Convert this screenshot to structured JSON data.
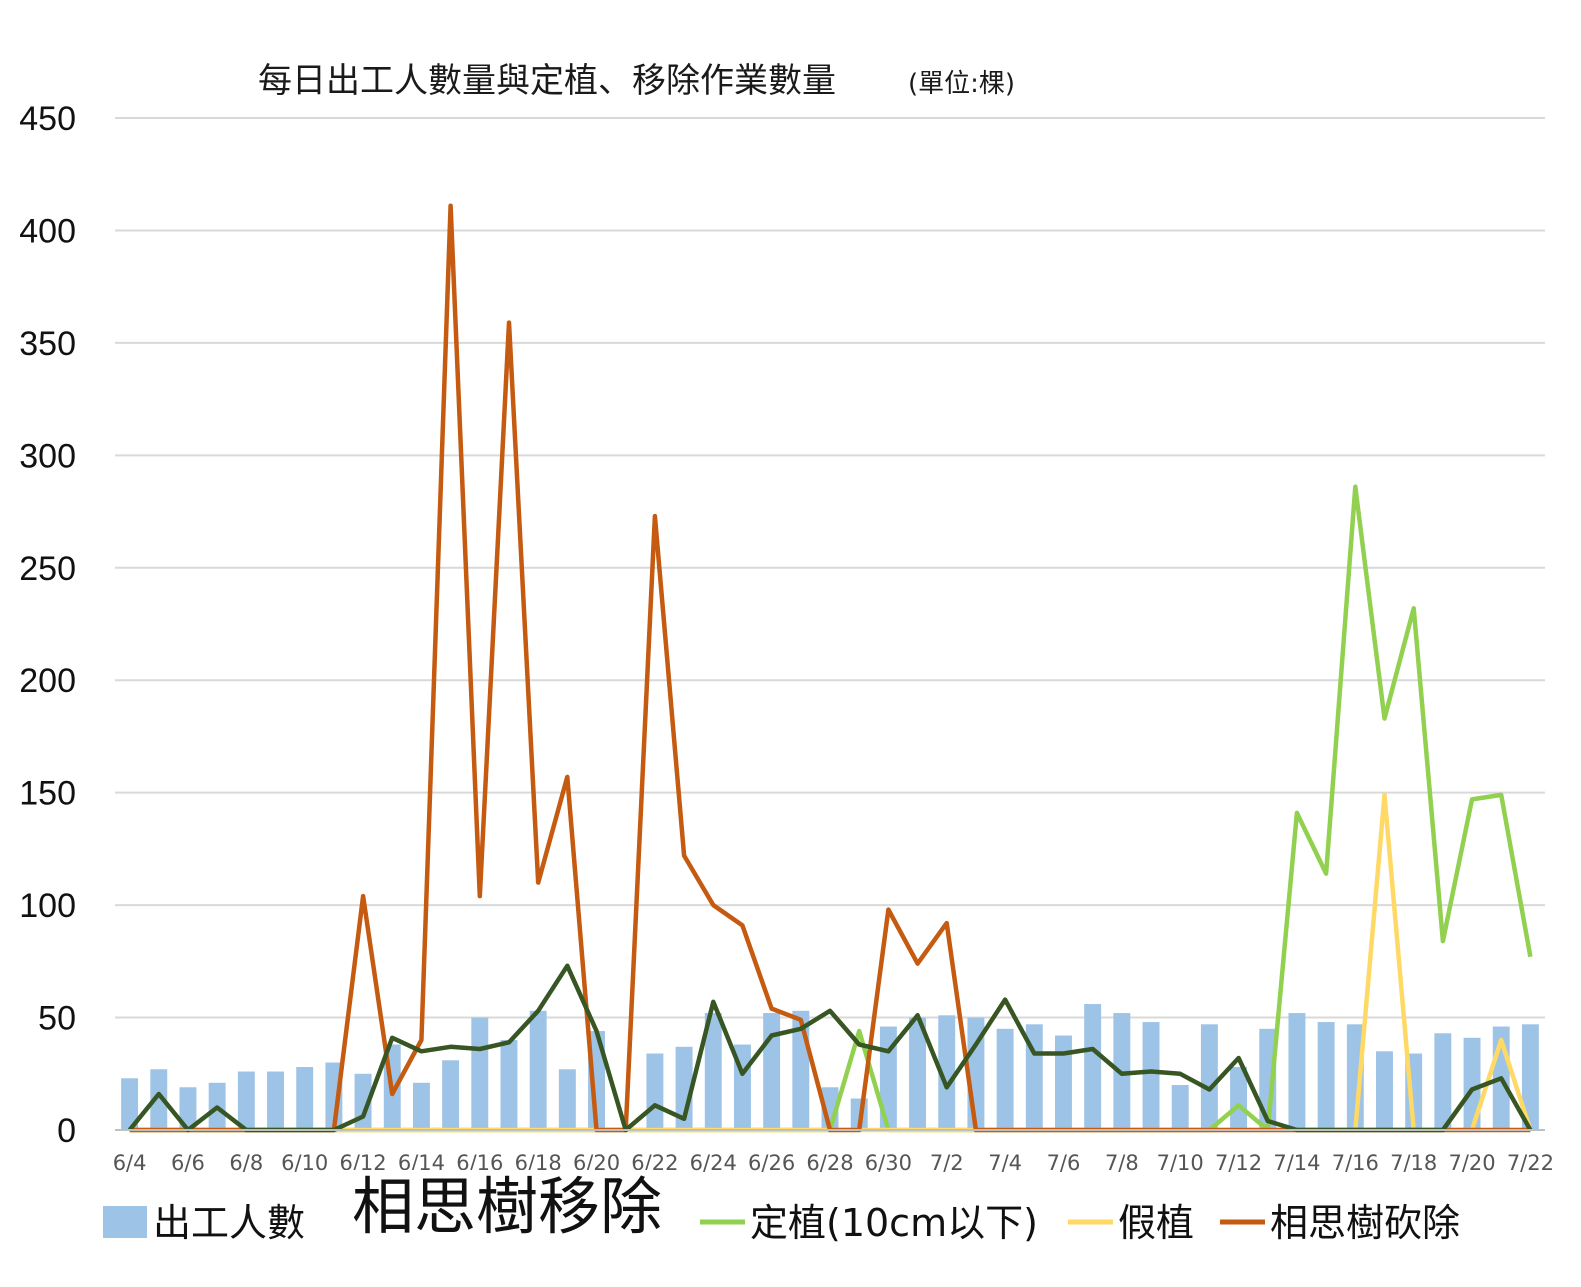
{
  "chart_data": {
    "type": "bar",
    "title": "每日出工人數量與定植、移除作業數量",
    "unit_label": "(單位:棵)",
    "ylim": [
      0,
      450
    ],
    "yticks": [
      0,
      50,
      100,
      150,
      200,
      250,
      300,
      350,
      400,
      450
    ],
    "grid": true,
    "legend_position": "bottom",
    "categories": [
      "6/4",
      "6/5",
      "6/6",
      "6/7",
      "6/8",
      "6/9",
      "6/10",
      "6/11",
      "6/12",
      "6/13",
      "6/14",
      "6/15",
      "6/16",
      "6/17",
      "6/18",
      "6/19",
      "6/20",
      "6/21",
      "6/22",
      "6/23",
      "6/24",
      "6/25",
      "6/26",
      "6/27",
      "6/28",
      "6/29",
      "6/30",
      "7/1",
      "7/2",
      "7/3",
      "7/4",
      "7/5",
      "7/6",
      "7/7",
      "7/8",
      "7/9",
      "7/10",
      "7/11",
      "7/12",
      "7/13",
      "7/14",
      "7/15",
      "7/16",
      "7/17",
      "7/18",
      "7/19",
      "7/20",
      "7/21",
      "7/22"
    ],
    "tick_labels": [
      "6/4",
      "6/6",
      "6/8",
      "6/10",
      "6/12",
      "6/14",
      "6/16",
      "6/18",
      "6/20",
      "6/22",
      "6/24",
      "6/26",
      "6/28",
      "6/30",
      "7/2",
      "7/4",
      "7/6",
      "7/8",
      "7/10",
      "7/12",
      "7/14",
      "7/16",
      "7/18",
      "7/20",
      "7/22"
    ],
    "series": [
      {
        "name": "出工人數",
        "kind": "bar",
        "color": "#9dc3e6",
        "values": [
          23,
          27,
          19,
          21,
          26,
          26,
          28,
          30,
          25,
          38,
          21,
          31,
          50,
          40,
          53,
          27,
          44,
          0,
          34,
          37,
          52,
          38,
          52,
          53,
          19,
          14,
          46,
          50,
          51,
          50,
          45,
          47,
          42,
          56,
          52,
          48,
          20,
          47,
          28,
          45,
          52,
          48,
          47,
          35,
          34,
          43,
          41,
          46,
          47
        ]
      },
      {
        "name": "相思樹移除",
        "kind": "line",
        "color": "#375623",
        "values": [
          0,
          16,
          0,
          10,
          0,
          0,
          0,
          0,
          6,
          41,
          35,
          37,
          36,
          39,
          53,
          73,
          44,
          0,
          11,
          5,
          57,
          25,
          42,
          45,
          53,
          38,
          35,
          51,
          19,
          38,
          58,
          34,
          34,
          36,
          25,
          26,
          25,
          18,
          32,
          4,
          0,
          0,
          0,
          0,
          0,
          0,
          18,
          23,
          0
        ]
      },
      {
        "name": "定植(10cm以下)",
        "kind": "line",
        "color": "#92d050",
        "values": [
          0,
          0,
          0,
          0,
          0,
          0,
          0,
          0,
          0,
          0,
          0,
          0,
          0,
          0,
          0,
          0,
          0,
          0,
          0,
          0,
          0,
          0,
          0,
          0,
          0,
          44,
          0,
          0,
          0,
          0,
          0,
          0,
          0,
          0,
          0,
          0,
          0,
          0,
          11,
          0,
          141,
          114,
          286,
          183,
          232,
          84,
          147,
          149,
          77
        ]
      },
      {
        "name": "假植",
        "kind": "line",
        "color": "#ffd966",
        "values": [
          0,
          0,
          0,
          0,
          0,
          0,
          0,
          0,
          0,
          0,
          0,
          0,
          0,
          0,
          0,
          0,
          0,
          0,
          0,
          0,
          0,
          0,
          0,
          0,
          0,
          0,
          0,
          0,
          0,
          0,
          0,
          0,
          0,
          0,
          0,
          0,
          0,
          0,
          0,
          0,
          0,
          0,
          0,
          149,
          0,
          0,
          0,
          40,
          0
        ]
      },
      {
        "name": "相思樹砍除",
        "kind": "line",
        "color": "#c55a11",
        "values": [
          0,
          0,
          0,
          0,
          0,
          0,
          0,
          0,
          104,
          16,
          40,
          411,
          104,
          359,
          110,
          157,
          0,
          0,
          273,
          122,
          100,
          91,
          54,
          49,
          0,
          0,
          98,
          74,
          92,
          0,
          0,
          0,
          0,
          0,
          0,
          0,
          0,
          0,
          0,
          0,
          0,
          0,
          0,
          0,
          0,
          0,
          0,
          0,
          0
        ]
      }
    ]
  }
}
